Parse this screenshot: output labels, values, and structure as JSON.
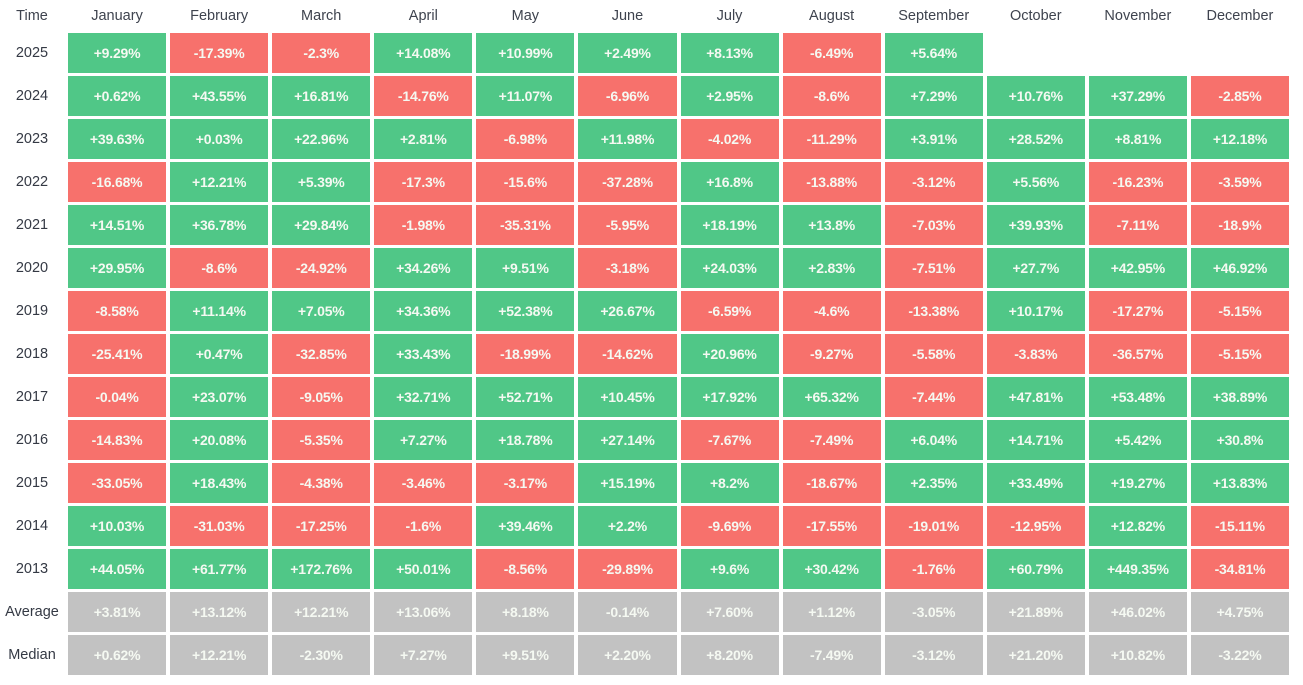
{
  "colors": {
    "positive_bg": "#50c787",
    "negative_bg": "#f7716c",
    "neutral_bg": "#c2c2c2",
    "cell_text": "#f5f9f2",
    "label_text": "#343944",
    "header_text": "#3e434e",
    "background": "#ffffff"
  },
  "chart_data": {
    "type": "heatmap",
    "title": "",
    "legend_position": "none",
    "grid": false,
    "value_format": "percent",
    "columns": [
      "Time",
      "January",
      "February",
      "March",
      "April",
      "May",
      "June",
      "July",
      "August",
      "September",
      "October",
      "November",
      "December"
    ],
    "rows": [
      {
        "label": "2025",
        "neutral": false,
        "values": [
          "+9.29%",
          "-17.39%",
          "-2.3%",
          "+14.08%",
          "+10.99%",
          "+2.49%",
          "+8.13%",
          "-6.49%",
          "+5.64%",
          "",
          "",
          ""
        ]
      },
      {
        "label": "2024",
        "neutral": false,
        "values": [
          "+0.62%",
          "+43.55%",
          "+16.81%",
          "-14.76%",
          "+11.07%",
          "-6.96%",
          "+2.95%",
          "-8.6%",
          "+7.29%",
          "+10.76%",
          "+37.29%",
          "-2.85%"
        ]
      },
      {
        "label": "2023",
        "neutral": false,
        "values": [
          "+39.63%",
          "+0.03%",
          "+22.96%",
          "+2.81%",
          "-6.98%",
          "+11.98%",
          "-4.02%",
          "-11.29%",
          "+3.91%",
          "+28.52%",
          "+8.81%",
          "+12.18%"
        ]
      },
      {
        "label": "2022",
        "neutral": false,
        "values": [
          "-16.68%",
          "+12.21%",
          "+5.39%",
          "-17.3%",
          "-15.6%",
          "-37.28%",
          "+16.8%",
          "-13.88%",
          "-3.12%",
          "+5.56%",
          "-16.23%",
          "-3.59%"
        ]
      },
      {
        "label": "2021",
        "neutral": false,
        "values": [
          "+14.51%",
          "+36.78%",
          "+29.84%",
          "-1.98%",
          "-35.31%",
          "-5.95%",
          "+18.19%",
          "+13.8%",
          "-7.03%",
          "+39.93%",
          "-7.11%",
          "-18.9%"
        ]
      },
      {
        "label": "2020",
        "neutral": false,
        "values": [
          "+29.95%",
          "-8.6%",
          "-24.92%",
          "+34.26%",
          "+9.51%",
          "-3.18%",
          "+24.03%",
          "+2.83%",
          "-7.51%",
          "+27.7%",
          "+42.95%",
          "+46.92%"
        ]
      },
      {
        "label": "2019",
        "neutral": false,
        "values": [
          "-8.58%",
          "+11.14%",
          "+7.05%",
          "+34.36%",
          "+52.38%",
          "+26.67%",
          "-6.59%",
          "-4.6%",
          "-13.38%",
          "+10.17%",
          "-17.27%",
          "-5.15%"
        ]
      },
      {
        "label": "2018",
        "neutral": false,
        "values": [
          "-25.41%",
          "+0.47%",
          "-32.85%",
          "+33.43%",
          "-18.99%",
          "-14.62%",
          "+20.96%",
          "-9.27%",
          "-5.58%",
          "-3.83%",
          "-36.57%",
          "-5.15%"
        ]
      },
      {
        "label": "2017",
        "neutral": false,
        "values": [
          "-0.04%",
          "+23.07%",
          "-9.05%",
          "+32.71%",
          "+52.71%",
          "+10.45%",
          "+17.92%",
          "+65.32%",
          "-7.44%",
          "+47.81%",
          "+53.48%",
          "+38.89%"
        ]
      },
      {
        "label": "2016",
        "neutral": false,
        "values": [
          "-14.83%",
          "+20.08%",
          "-5.35%",
          "+7.27%",
          "+18.78%",
          "+27.14%",
          "-7.67%",
          "-7.49%",
          "+6.04%",
          "+14.71%",
          "+5.42%",
          "+30.8%"
        ]
      },
      {
        "label": "2015",
        "neutral": false,
        "values": [
          "-33.05%",
          "+18.43%",
          "-4.38%",
          "-3.46%",
          "-3.17%",
          "+15.19%",
          "+8.2%",
          "-18.67%",
          "+2.35%",
          "+33.49%",
          "+19.27%",
          "+13.83%"
        ]
      },
      {
        "label": "2014",
        "neutral": false,
        "values": [
          "+10.03%",
          "-31.03%",
          "-17.25%",
          "-1.6%",
          "+39.46%",
          "+2.2%",
          "-9.69%",
          "-17.55%",
          "-19.01%",
          "-12.95%",
          "+12.82%",
          "-15.11%"
        ]
      },
      {
        "label": "2013",
        "neutral": false,
        "values": [
          "+44.05%",
          "+61.77%",
          "+172.76%",
          "+50.01%",
          "-8.56%",
          "-29.89%",
          "+9.6%",
          "+30.42%",
          "-1.76%",
          "+60.79%",
          "+449.35%",
          "-34.81%"
        ]
      },
      {
        "label": "Average",
        "neutral": true,
        "values": [
          "+3.81%",
          "+13.12%",
          "+12.21%",
          "+13.06%",
          "+8.18%",
          "-0.14%",
          "+7.60%",
          "+1.12%",
          "-3.05%",
          "+21.89%",
          "+46.02%",
          "+4.75%"
        ]
      },
      {
        "label": "Median",
        "neutral": true,
        "values": [
          "+0.62%",
          "+12.21%",
          "-2.30%",
          "+7.27%",
          "+9.51%",
          "+2.20%",
          "+8.20%",
          "-7.49%",
          "-3.12%",
          "+21.20%",
          "+10.82%",
          "-3.22%"
        ]
      }
    ]
  }
}
